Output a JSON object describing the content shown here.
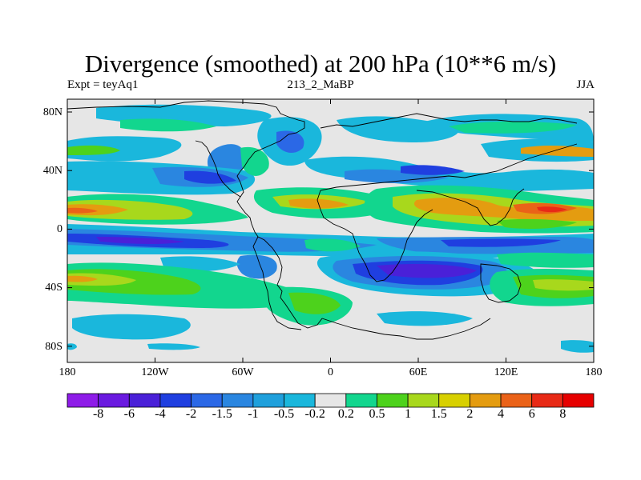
{
  "chart_data": {
    "type": "contour_map",
    "title": "Divergence (smoothed) at 200 hPa (10**6 m/s)",
    "subtitle_left": "Expt = teyAq1",
    "subtitle_center": "213_2_MaBP",
    "subtitle_right": "JJA",
    "x_ticks": [
      "180",
      "120W",
      "60W",
      "0",
      "60E",
      "120E",
      "180"
    ],
    "y_ticks": [
      "80N",
      "40N",
      "0",
      "40S",
      "80S"
    ],
    "colorbar": {
      "levels": [
        "-8",
        "-6",
        "-4",
        "-2",
        "-1.5",
        "-1",
        "-0.5",
        "-0.2",
        "0.2",
        "0.5",
        "1",
        "1.5",
        "2",
        "4",
        "6",
        "8"
      ],
      "colors": [
        "#8e1ce8",
        "#6a1ae0",
        "#4a20d8",
        "#1f3fe0",
        "#2b68e6",
        "#2a86e0",
        "#1fa0dc",
        "#1ab7dc",
        "#e6e6e6",
        "#12d68e",
        "#4dd21c",
        "#a8d81c",
        "#d8d000",
        "#e49c10",
        "#ea6218",
        "#e82a16",
        "#e60000"
      ]
    }
  }
}
